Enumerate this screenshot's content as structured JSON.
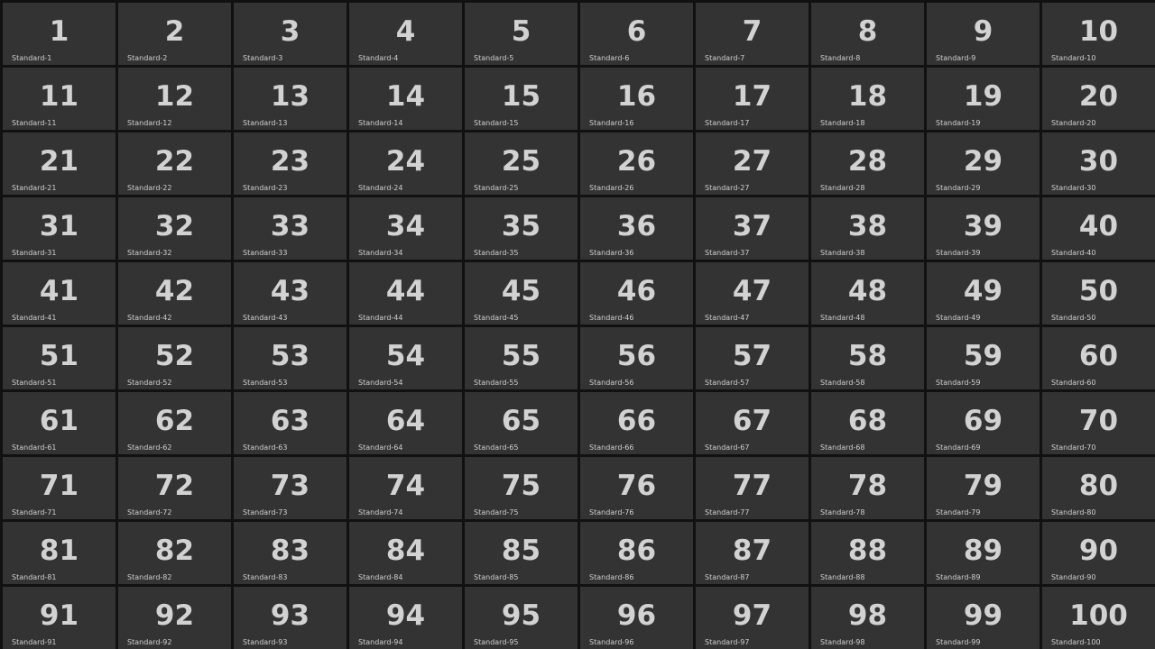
{
  "tiles": [
    {
      "number": "1",
      "label": "Standard-1"
    },
    {
      "number": "2",
      "label": "Standard-2"
    },
    {
      "number": "3",
      "label": "Standard-3"
    },
    {
      "number": "4",
      "label": "Standard-4"
    },
    {
      "number": "5",
      "label": "Standard-5"
    },
    {
      "number": "6",
      "label": "Standard-6"
    },
    {
      "number": "7",
      "label": "Standard-7"
    },
    {
      "number": "8",
      "label": "Standard-8"
    },
    {
      "number": "9",
      "label": "Standard-9"
    },
    {
      "number": "10",
      "label": "Standard-10"
    },
    {
      "number": "11",
      "label": "Standard-11"
    },
    {
      "number": "12",
      "label": "Standard-12"
    },
    {
      "number": "13",
      "label": "Standard-13"
    },
    {
      "number": "14",
      "label": "Standard-14"
    },
    {
      "number": "15",
      "label": "Standard-15"
    },
    {
      "number": "16",
      "label": "Standard-16"
    },
    {
      "number": "17",
      "label": "Standard-17"
    },
    {
      "number": "18",
      "label": "Standard-18"
    },
    {
      "number": "19",
      "label": "Standard-19"
    },
    {
      "number": "20",
      "label": "Standard-20"
    },
    {
      "number": "21",
      "label": "Standard-21"
    },
    {
      "number": "22",
      "label": "Standard-22"
    },
    {
      "number": "23",
      "label": "Standard-23"
    },
    {
      "number": "24",
      "label": "Standard-24"
    },
    {
      "number": "25",
      "label": "Standard-25"
    },
    {
      "number": "26",
      "label": "Standard-26"
    },
    {
      "number": "27",
      "label": "Standard-27"
    },
    {
      "number": "28",
      "label": "Standard-28"
    },
    {
      "number": "29",
      "label": "Standard-29"
    },
    {
      "number": "30",
      "label": "Standard-30"
    },
    {
      "number": "31",
      "label": "Standard-31"
    },
    {
      "number": "32",
      "label": "Standard-32"
    },
    {
      "number": "33",
      "label": "Standard-33"
    },
    {
      "number": "34",
      "label": "Standard-34"
    },
    {
      "number": "35",
      "label": "Standard-35"
    },
    {
      "number": "36",
      "label": "Standard-36"
    },
    {
      "number": "37",
      "label": "Standard-37"
    },
    {
      "number": "38",
      "label": "Standard-38"
    },
    {
      "number": "39",
      "label": "Standard-39"
    },
    {
      "number": "40",
      "label": "Standard-40"
    },
    {
      "number": "41",
      "label": "Standard-41"
    },
    {
      "number": "42",
      "label": "Standard-42"
    },
    {
      "number": "43",
      "label": "Standard-43"
    },
    {
      "number": "44",
      "label": "Standard-44"
    },
    {
      "number": "45",
      "label": "Standard-45"
    },
    {
      "number": "46",
      "label": "Standard-46"
    },
    {
      "number": "47",
      "label": "Standard-47"
    },
    {
      "number": "48",
      "label": "Standard-48"
    },
    {
      "number": "49",
      "label": "Standard-49"
    },
    {
      "number": "50",
      "label": "Standard-50"
    },
    {
      "number": "51",
      "label": "Standard-51"
    },
    {
      "number": "52",
      "label": "Standard-52"
    },
    {
      "number": "53",
      "label": "Standard-53"
    },
    {
      "number": "54",
      "label": "Standard-54"
    },
    {
      "number": "55",
      "label": "Standard-55"
    },
    {
      "number": "56",
      "label": "Standard-56"
    },
    {
      "number": "57",
      "label": "Standard-57"
    },
    {
      "number": "58",
      "label": "Standard-58"
    },
    {
      "number": "59",
      "label": "Standard-59"
    },
    {
      "number": "60",
      "label": "Standard-60"
    },
    {
      "number": "61",
      "label": "Standard-61"
    },
    {
      "number": "62",
      "label": "Standard-62"
    },
    {
      "number": "63",
      "label": "Standard-63"
    },
    {
      "number": "64",
      "label": "Standard-64"
    },
    {
      "number": "65",
      "label": "Standard-65"
    },
    {
      "number": "66",
      "label": "Standard-66"
    },
    {
      "number": "67",
      "label": "Standard-67"
    },
    {
      "number": "68",
      "label": "Standard-68"
    },
    {
      "number": "69",
      "label": "Standard-69"
    },
    {
      "number": "70",
      "label": "Standard-70"
    },
    {
      "number": "71",
      "label": "Standard-71"
    },
    {
      "number": "72",
      "label": "Standard-72"
    },
    {
      "number": "73",
      "label": "Standard-73"
    },
    {
      "number": "74",
      "label": "Standard-74"
    },
    {
      "number": "75",
      "label": "Standard-75"
    },
    {
      "number": "76",
      "label": "Standard-76"
    },
    {
      "number": "77",
      "label": "Standard-77"
    },
    {
      "number": "78",
      "label": "Standard-78"
    },
    {
      "number": "79",
      "label": "Standard-79"
    },
    {
      "number": "80",
      "label": "Standard-80"
    },
    {
      "number": "81",
      "label": "Standard-81"
    },
    {
      "number": "82",
      "label": "Standard-82"
    },
    {
      "number": "83",
      "label": "Standard-83"
    },
    {
      "number": "84",
      "label": "Standard-84"
    },
    {
      "number": "85",
      "label": "Standard-85"
    },
    {
      "number": "86",
      "label": "Standard-86"
    },
    {
      "number": "87",
      "label": "Standard-87"
    },
    {
      "number": "88",
      "label": "Standard-88"
    },
    {
      "number": "89",
      "label": "Standard-89"
    },
    {
      "number": "90",
      "label": "Standard-90"
    },
    {
      "number": "91",
      "label": "Standard-91"
    },
    {
      "number": "92",
      "label": "Standard-92"
    },
    {
      "number": "93",
      "label": "Standard-93"
    },
    {
      "number": "94",
      "label": "Standard-94"
    },
    {
      "number": "95",
      "label": "Standard-95"
    },
    {
      "number": "96",
      "label": "Standard-96"
    },
    {
      "number": "97",
      "label": "Standard-97"
    },
    {
      "number": "98",
      "label": "Standard-98"
    },
    {
      "number": "99",
      "label": "Standard-99"
    },
    {
      "number": "100",
      "label": "Standard-100"
    }
  ],
  "colors": {
    "background": "#111111",
    "tile": "#333333",
    "text": "#d2d2d2"
  }
}
